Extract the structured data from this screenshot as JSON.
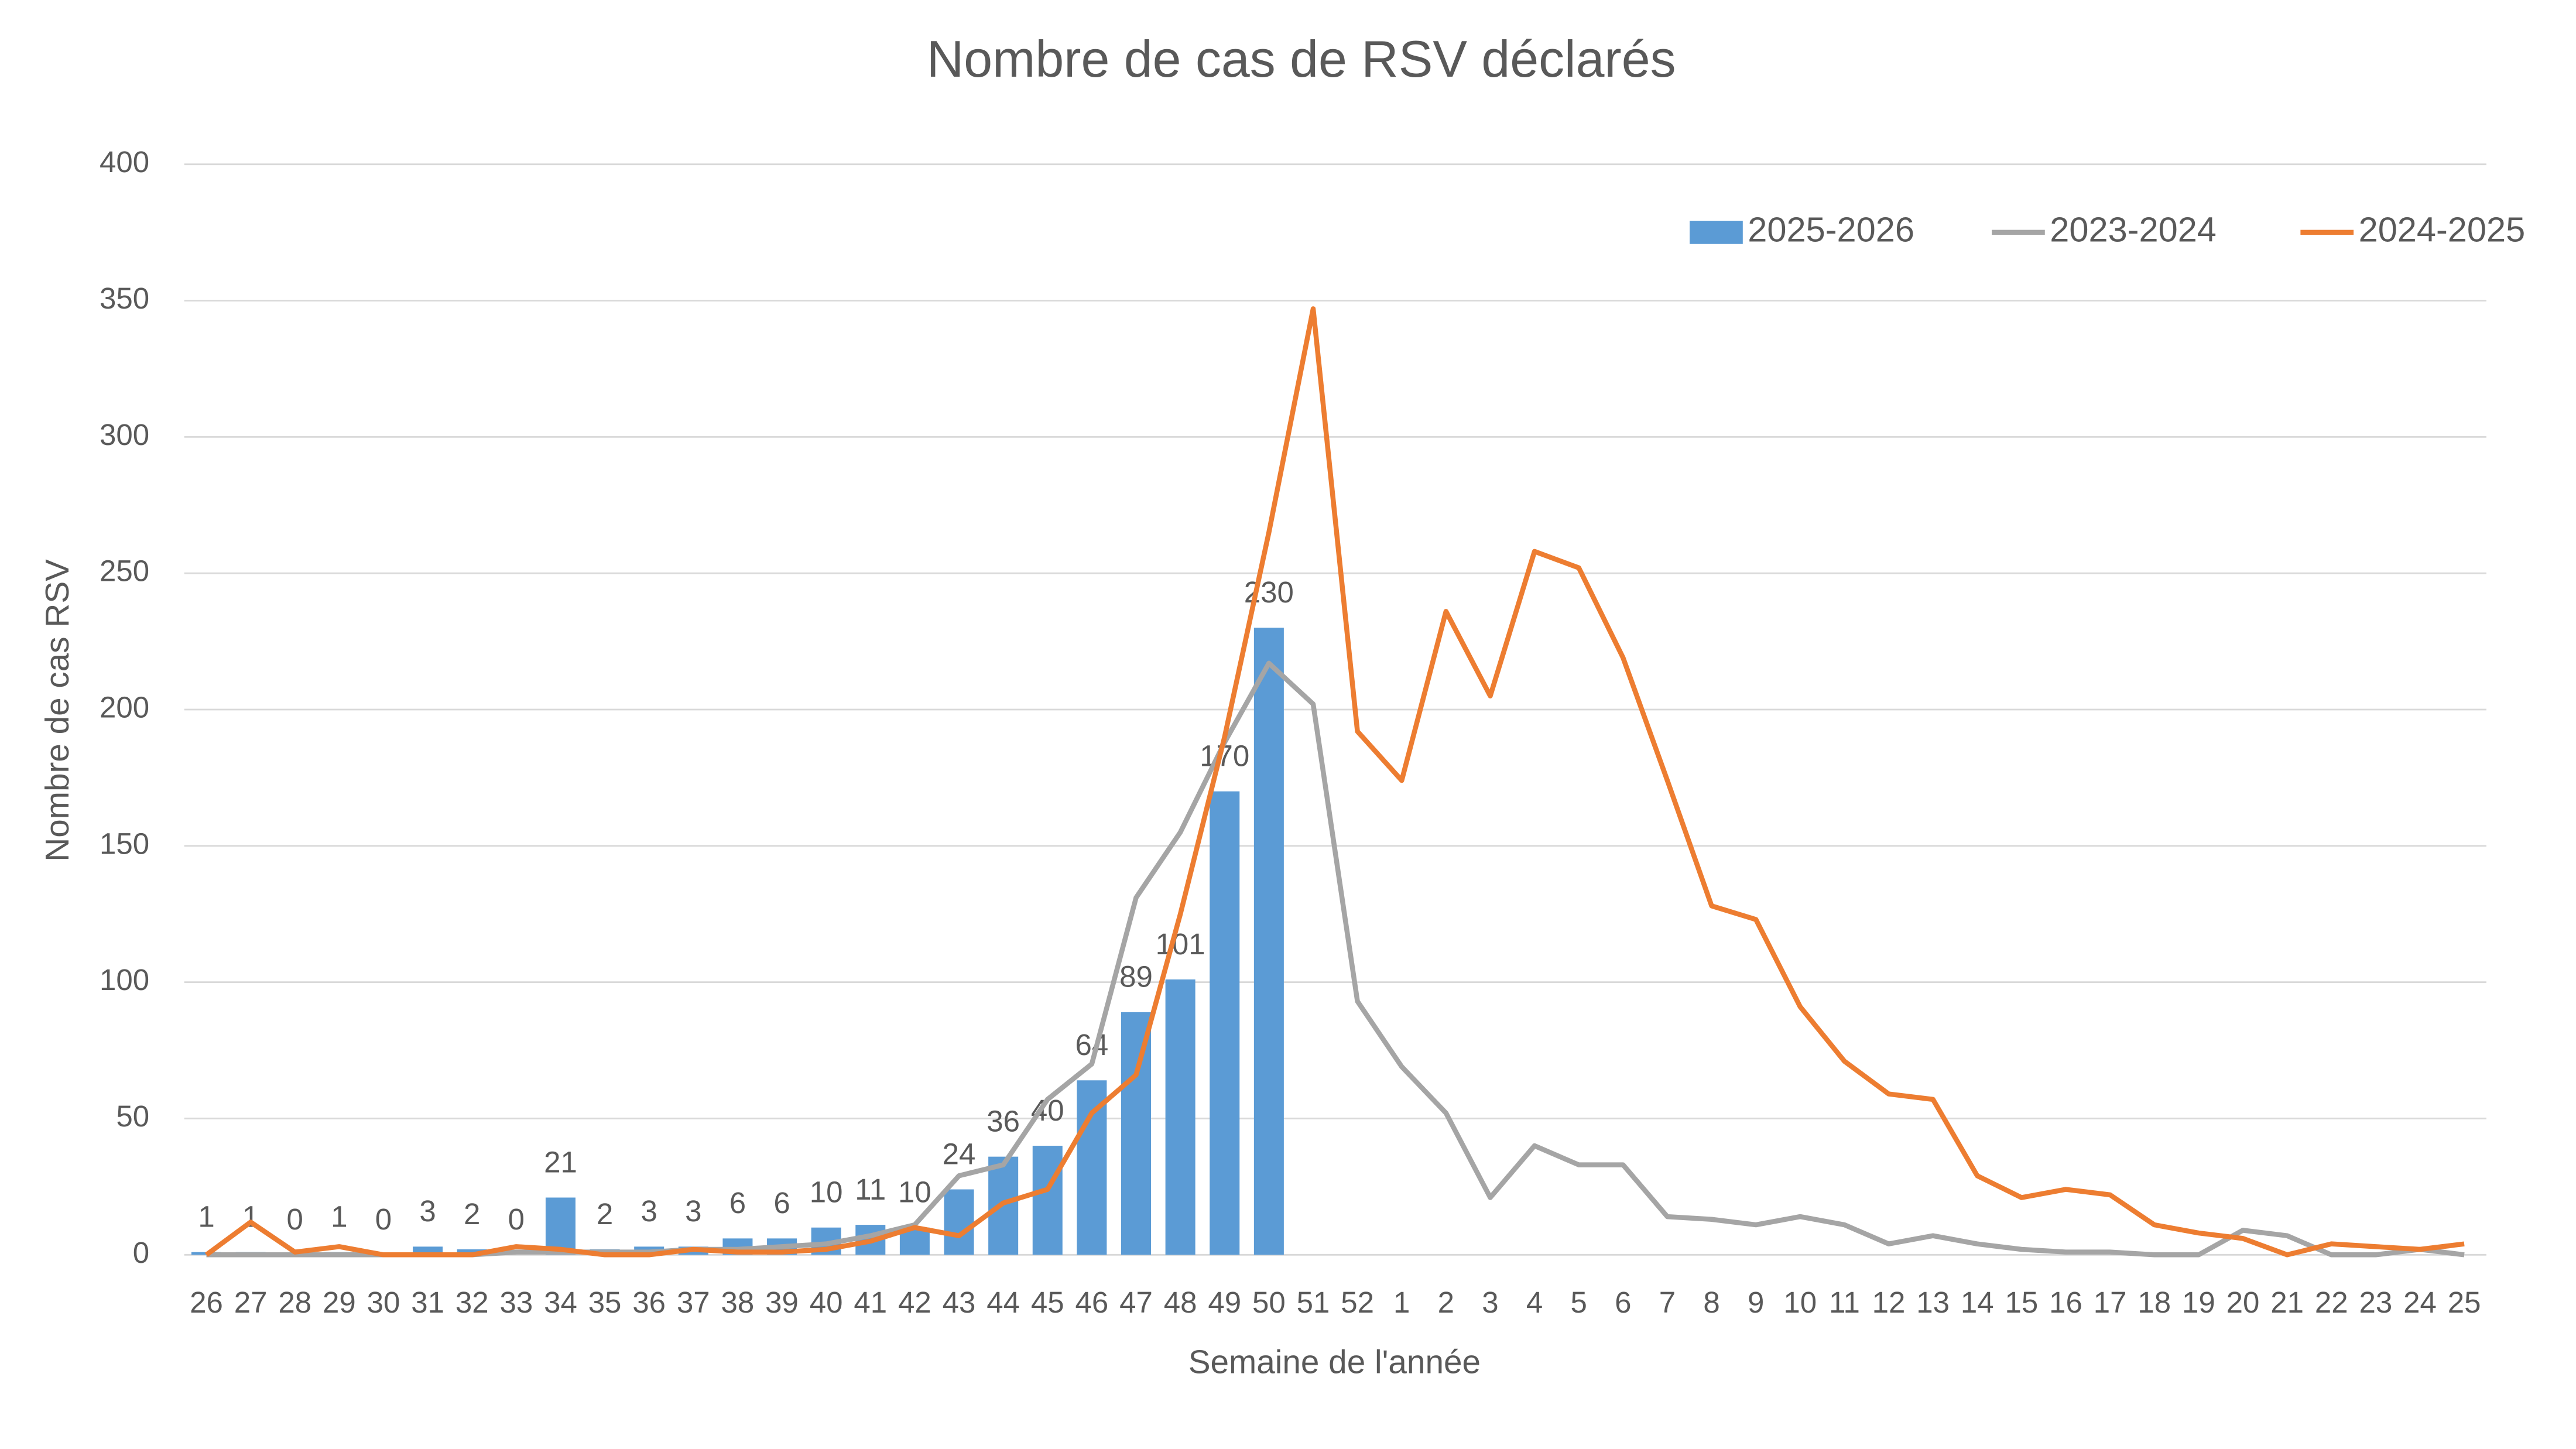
{
  "chart_data": {
    "type": "bar_line",
    "title": "Nombre de cas de RSV déclarés",
    "x_label": "Semaine de l'année",
    "y_label": "Nombre de cas RSV",
    "categories": [
      "26",
      "27",
      "28",
      "29",
      "30",
      "31",
      "32",
      "33",
      "34",
      "35",
      "36",
      "37",
      "38",
      "39",
      "40",
      "41",
      "42",
      "43",
      "44",
      "45",
      "46",
      "47",
      "48",
      "49",
      "50",
      "51",
      "52",
      "1",
      "2",
      "3",
      "4",
      "5",
      "6",
      "7",
      "8",
      "9",
      "10",
      "11",
      "12",
      "13",
      "14",
      "15",
      "16",
      "17",
      "18",
      "19",
      "20",
      "21",
      "22",
      "23",
      "24",
      "25"
    ],
    "series": [
      {
        "name": "2025-2026",
        "kind": "bar",
        "color": "#5b9bd5",
        "data_labels": true,
        "values": [
          1,
          1,
          0,
          1,
          0,
          3,
          2,
          0,
          21,
          2,
          3,
          3,
          6,
          6,
          10,
          11,
          10,
          24,
          36,
          40,
          64,
          89,
          101,
          170,
          230,
          null,
          null,
          null,
          null,
          null,
          null,
          null,
          null,
          null,
          null,
          null,
          null,
          null,
          null,
          null,
          null,
          null,
          null,
          null,
          null,
          null,
          null,
          null,
          null,
          null,
          null,
          null
        ]
      },
      {
        "name": "2023-2024",
        "kind": "line",
        "color": "#a5a5a5",
        "values": [
          0,
          0,
          0,
          0,
          0,
          0,
          0,
          1,
          1,
          1,
          1,
          2,
          2,
          3,
          4,
          7,
          11,
          29,
          33,
          57,
          70,
          131,
          155,
          188,
          217,
          202,
          93,
          69,
          52,
          21,
          40,
          33,
          33,
          14,
          13,
          11,
          14,
          11,
          4,
          7,
          4,
          2,
          1,
          1,
          0,
          0,
          9,
          7,
          0,
          0,
          2,
          0
        ]
      },
      {
        "name": "2024-2025",
        "kind": "line",
        "color": "#ed7d31",
        "values": [
          0,
          12,
          1,
          3,
          0,
          0,
          0,
          3,
          2,
          0,
          0,
          2,
          1,
          1,
          2,
          5,
          10,
          7,
          19,
          24,
          52,
          66,
          125,
          190,
          265,
          347,
          192,
          174,
          236,
          205,
          258,
          252,
          219,
          174,
          128,
          123,
          91,
          71,
          59,
          57,
          29,
          21,
          24,
          22,
          11,
          8,
          6,
          0,
          4,
          3,
          2,
          4
        ]
      }
    ],
    "ylim": [
      0,
      400
    ],
    "yticks": [
      0,
      50,
      100,
      150,
      200,
      250,
      300,
      350,
      400
    ],
    "grid": true,
    "legend": "top-right"
  }
}
